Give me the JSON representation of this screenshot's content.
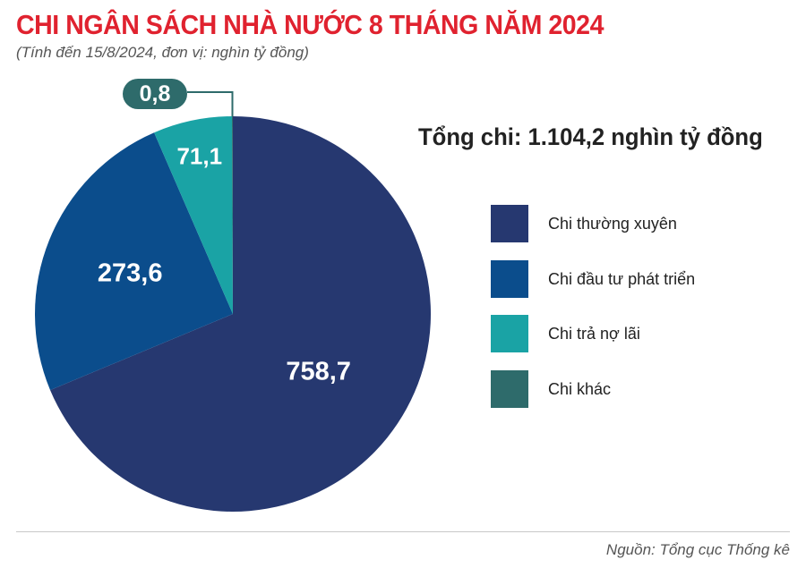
{
  "header": {
    "title": "CHI NGÂN SÁCH NHÀ NƯỚC 8 THÁNG NĂM 2024",
    "subtitle": "(Tính đến 15/8/2024, đơn vị: nghìn tỷ đồng)"
  },
  "total_text": "Tổng chi: 1.104,2 nghìn tỷ đồng",
  "footer": {
    "source": "Nguồn: Tổng cục Thống kê"
  },
  "chart_data": {
    "type": "pie",
    "title": "CHI NGÂN SÁCH NHÀ NƯỚC 8 THÁNG NĂM 2024",
    "subtitle": "(Tính đến 15/8/2024, đơn vị: nghìn tỷ đồng)",
    "legend_position": "right",
    "slices": [
      {
        "label": "Chi thường xuyên",
        "value": 758.7,
        "value_label": "758,7",
        "color": "#263870"
      },
      {
        "label": "Chi đầu tư phát triển",
        "value": 273.6,
        "value_label": "273,6",
        "color": "#0b4d8c"
      },
      {
        "label": "Chi trả nợ lãi",
        "value": 71.1,
        "value_label": "71,1",
        "color": "#1aa3a5"
      },
      {
        "label": "Chi khác",
        "value": 0.8,
        "value_label": "0,8",
        "color": "#2e6b6b"
      }
    ]
  }
}
